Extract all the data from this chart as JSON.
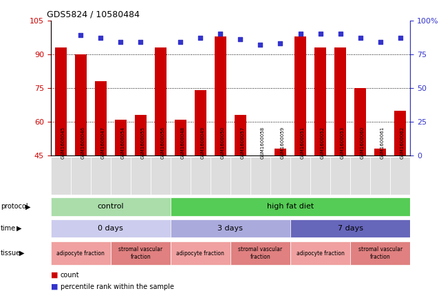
{
  "title": "GDS5824 / 10580484",
  "samples": [
    "GSM1600045",
    "GSM1600046",
    "GSM1600047",
    "GSM1600054",
    "GSM1600055",
    "GSM1600056",
    "GSM1600048",
    "GSM1600049",
    "GSM1600050",
    "GSM1600057",
    "GSM1600058",
    "GSM1600059",
    "GSM1600051",
    "GSM1600052",
    "GSM1600053",
    "GSM1600060",
    "GSM1600061",
    "GSM1600062"
  ],
  "counts": [
    93,
    90,
    78,
    61,
    63,
    93,
    61,
    74,
    98,
    63,
    44,
    48,
    98,
    93,
    93,
    75,
    48,
    65
  ],
  "percentiles": [
    null,
    89,
    87,
    84,
    84,
    null,
    84,
    87,
    90,
    86,
    82,
    83,
    90,
    90,
    90,
    87,
    84,
    87
  ],
  "ylim_left": [
    45,
    105
  ],
  "ylim_right": [
    0,
    100
  ],
  "yticks_left": [
    45,
    60,
    75,
    90,
    105
  ],
  "yticks_right": [
    0,
    25,
    50,
    75,
    100
  ],
  "ytick_labels_right": [
    "0",
    "25",
    "50",
    "75",
    "100%"
  ],
  "bar_color": "#cc0000",
  "dot_color": "#3333cc",
  "grid_color": "#000000",
  "protocol_control_color": "#aaddaa",
  "protocol_hfd_color": "#55cc55",
  "time_0_color": "#ccccee",
  "time_3_color": "#aaaadd",
  "time_7_color": "#6666bb",
  "tissue_adipocyte_color": "#f0a0a0",
  "tissue_stromal_color": "#e08080",
  "sample_bg_color": "#dddddd",
  "legend_count_label": "count",
  "legend_percentile_label": "percentile rank within the sample"
}
